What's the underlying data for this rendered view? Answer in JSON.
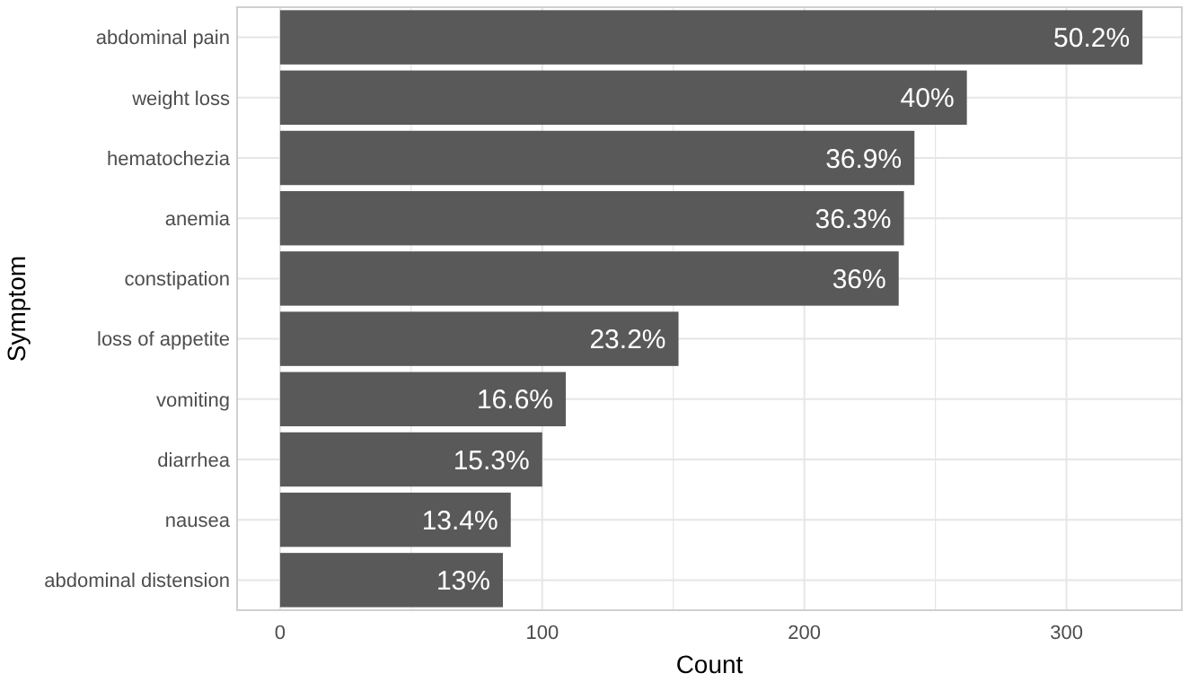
{
  "chart_data": {
    "type": "bar",
    "orientation": "horizontal",
    "xlabel": "Count",
    "ylabel": "Symptom",
    "categories": [
      "abdominal pain",
      "weight loss",
      "hematochezia",
      "anemia",
      "constipation",
      "loss of appetite",
      "vomiting",
      "diarrhea",
      "nausea",
      "abdominal distension"
    ],
    "values": [
      329,
      262,
      242,
      238,
      236,
      152,
      109,
      100,
      88,
      85
    ],
    "annotations": [
      {
        "text": "50.2%",
        "x": 329,
        "y": "abdominal pain"
      },
      {
        "text": "40%",
        "x": 262,
        "y": "weight loss"
      },
      {
        "text": "36.9%",
        "x": 242,
        "y": "hematochezia"
      },
      {
        "text": "36.3%",
        "x": 238,
        "y": "anemia"
      },
      {
        "text": "36%",
        "x": 236,
        "y": "constipation"
      },
      {
        "text": "23.2%",
        "x": 152,
        "y": "loss of appetite"
      },
      {
        "text": "16.6%",
        "x": 109,
        "y": "vomiting"
      },
      {
        "text": "15.3%",
        "x": 100,
        "y": "diarrhea"
      },
      {
        "text": "13.4%",
        "x": 88,
        "y": "nausea"
      },
      {
        "text": "13%",
        "x": 85,
        "y": "abdominal distension"
      }
    ],
    "color": "#595959",
    "xlim": [
      -16.4,
      344
    ],
    "xticks": [
      0,
      {
        "value": 50,
        "label": null
      },
      100,
      {
        "value": 150,
        "label": null
      },
      200,
      {
        "value": 250,
        "label": null
      },
      300
    ],
    "grid": true
  }
}
